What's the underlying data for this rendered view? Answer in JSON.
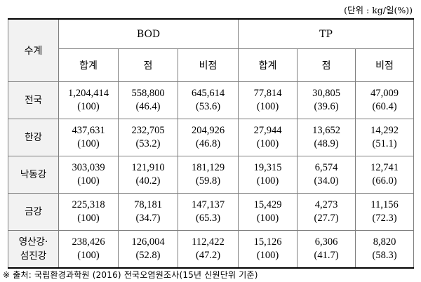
{
  "unit_label": "(단위 : kg/일(%))",
  "headers": {
    "stub": "수계",
    "groups": [
      "BOD",
      "TP"
    ],
    "sub": [
      "합계",
      "점",
      "비점",
      "합계",
      "점",
      "비점"
    ]
  },
  "rows": [
    {
      "region": [
        "전국"
      ],
      "cells": [
        [
          "1,204,414",
          "(100)"
        ],
        [
          "558,800",
          "(46.4)"
        ],
        [
          "645,614",
          "(53.6)"
        ],
        [
          "77,814",
          "(100)"
        ],
        [
          "30,805",
          "(39.6)"
        ],
        [
          "47,009",
          "(60.4)"
        ]
      ]
    },
    {
      "region": [
        "한강"
      ],
      "cells": [
        [
          "437,631",
          "(100)"
        ],
        [
          "232,705",
          "(53.2)"
        ],
        [
          "204,926",
          "(46.8)"
        ],
        [
          "27,944",
          "(100)"
        ],
        [
          "13,652",
          "(48.9)"
        ],
        [
          "14,292",
          "(51.1)"
        ]
      ]
    },
    {
      "region": [
        "낙동강"
      ],
      "cells": [
        [
          "303,039",
          "(100)"
        ],
        [
          "121,910",
          "(40.2)"
        ],
        [
          "181,129",
          "(59.8)"
        ],
        [
          "19,315",
          "(100)"
        ],
        [
          "6,574",
          "(34.0)"
        ],
        [
          "12,741",
          "(66.0)"
        ]
      ]
    },
    {
      "region": [
        "금강"
      ],
      "cells": [
        [
          "225,318",
          "(100)"
        ],
        [
          "78,181",
          "(34.7)"
        ],
        [
          "147,137",
          "(65.3)"
        ],
        [
          "15,429",
          "(100)"
        ],
        [
          "4,273",
          "(27.7)"
        ],
        [
          "11,156",
          "(72.3)"
        ]
      ]
    },
    {
      "region": [
        "영산강·",
        "섬진강"
      ],
      "cells": [
        [
          "238,426",
          "(100)"
        ],
        [
          "126,004",
          "(52.8)"
        ],
        [
          "112,422",
          "(47.2)"
        ],
        [
          "15,126",
          "(100)"
        ],
        [
          "6,306",
          "(41.7)"
        ],
        [
          "8,820",
          "(58.3)"
        ]
      ]
    }
  ],
  "source_note": "※ 출처: 국립환경과학원 (2016) 전국오염원조사(15년 신원단위 기준)"
}
